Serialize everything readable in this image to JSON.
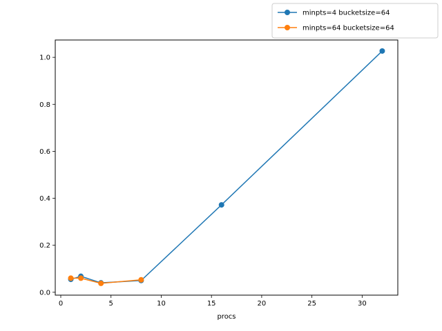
{
  "chart_data": {
    "type": "line",
    "title": "",
    "xlabel": "procs",
    "ylabel": "",
    "xlim": [
      -0.55,
      33.55
    ],
    "ylim": [
      -0.0123,
      1.0738
    ],
    "xticks": [
      0,
      5,
      10,
      15,
      20,
      25,
      30
    ],
    "yticks": [
      0.0,
      0.2,
      0.4,
      0.6,
      0.8,
      1.0
    ],
    "xtick_labels": [
      "0",
      "5",
      "10",
      "15",
      "20",
      "25",
      "30"
    ],
    "ytick_labels": [
      "0.0",
      "0.2",
      "0.4",
      "0.6",
      "0.8",
      "1.0"
    ],
    "grid": false,
    "legend_position": "top-right, outside the axes",
    "series": [
      {
        "name": "minpts=4 bucketsize=64",
        "color": "#1f77b4",
        "marker": "circle",
        "x": [
          1,
          2,
          4,
          8,
          16,
          32
        ],
        "y": [
          0.055,
          0.068,
          0.04,
          0.05,
          0.372,
          1.027
        ]
      },
      {
        "name": "minpts=64 bucketsize=64",
        "color": "#ff7f0e",
        "marker": "circle",
        "x": [
          1,
          2,
          4,
          8
        ],
        "y": [
          0.06,
          0.06,
          0.038,
          0.053
        ]
      }
    ]
  }
}
